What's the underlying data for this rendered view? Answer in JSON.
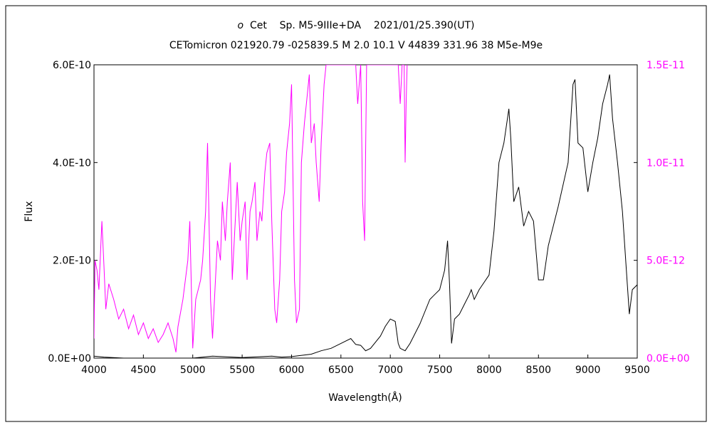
{
  "chart_data": {
    "type": "line",
    "title_star": "o",
    "title_rest": " Cet    Sp. M5-9IIIe+DA    2021/01/25.390(UT)",
    "subtitle": "CETomicron 021920.79 -025839.5 M 2.0 10.1 V 44839 331.96 38 M5e-M9e",
    "xlabel": "Wavelength(Å)",
    "ylabel": "Flux",
    "xlim": [
      4000,
      9500
    ],
    "ylim_left": [
      0,
      6e-10
    ],
    "ylim_right": [
      0,
      1.5e-11
    ],
    "x_ticks": [
      "4000",
      "4500",
      "5000",
      "5500",
      "6000",
      "6500",
      "7000",
      "7500",
      "8000",
      "8500",
      "9000",
      "9500"
    ],
    "y_ticks_left": [
      "0.0E+00",
      "2.0E-10",
      "4.0E-10",
      "6.0E-10"
    ],
    "y_ticks_right": [
      "0.0E+00",
      "5.0E-12",
      "1.0E-11",
      "1.5E-11"
    ],
    "grid": false,
    "series": [
      {
        "axis": "left",
        "color": "#000000",
        "x": [
          4000,
          4100,
          4300,
          4600,
          4800,
          5000,
          5200,
          5500,
          5800,
          5900,
          6000,
          6200,
          6300,
          6400,
          6500,
          6600,
          6650,
          6700,
          6750,
          6800,
          6900,
          6950,
          7000,
          7050,
          7080,
          7100,
          7150,
          7200,
          7300,
          7400,
          7450,
          7500,
          7550,
          7580,
          7600,
          7620,
          7650,
          7700,
          7750,
          7800,
          7820,
          7850,
          7900,
          8000,
          8050,
          8100,
          8150,
          8200,
          8220,
          8250,
          8300,
          8350,
          8400,
          8450,
          8500,
          8550,
          8600,
          8700,
          8800,
          8850,
          8870,
          8900,
          8950,
          9000,
          9050,
          9100,
          9150,
          9200,
          9220,
          9250,
          9300,
          9350,
          9400,
          9420,
          9450,
          9500
        ],
        "values": [
          4e-12,
          2e-12,
          0.0,
          0.0,
          0.0,
          0.0,
          4e-12,
          1e-12,
          4e-12,
          2e-12,
          3e-12,
          8e-12,
          1.5e-11,
          2e-11,
          3e-11,
          4e-11,
          2.8e-11,
          2.6e-11,
          1.5e-11,
          2e-11,
          4.5e-11,
          6.5e-11,
          8e-11,
          7.5e-11,
          3e-11,
          2e-11,
          1.5e-11,
          3e-11,
          7e-11,
          1.2e-10,
          1.3e-10,
          1.4e-10,
          1.8e-10,
          2.4e-10,
          1.5e-10,
          3e-11,
          8e-11,
          9e-11,
          1.1e-10,
          1.3e-10,
          1.4e-10,
          1.2e-10,
          1.4e-10,
          1.7e-10,
          2.6e-10,
          4e-10,
          4.4e-10,
          5.1e-10,
          4.5e-10,
          3.2e-10,
          3.5e-10,
          2.7e-10,
          3e-10,
          2.8e-10,
          1.6e-10,
          1.6e-10,
          2.3e-10,
          3.1e-10,
          4e-10,
          5.6e-10,
          5.7e-10,
          4.4e-10,
          4.3e-10,
          3.4e-10,
          4e-10,
          4.5e-10,
          5.2e-10,
          5.6e-10,
          5.8e-10,
          4.9e-10,
          4e-10,
          3e-10,
          1.5e-10,
          9e-11,
          1.4e-10,
          1.5e-10
        ]
      },
      {
        "axis": "right",
        "color": "#ff00ff",
        "x": [
          4000,
          4010,
          4030,
          4050,
          4080,
          4100,
          4120,
          4150,
          4200,
          4250,
          4300,
          4350,
          4400,
          4450,
          4500,
          4550,
          4600,
          4650,
          4700,
          4750,
          4800,
          4830,
          4850,
          4900,
          4950,
          4970,
          5000,
          5030,
          5080,
          5100,
          5130,
          5150,
          5180,
          5200,
          5230,
          5250,
          5280,
          5300,
          5330,
          5350,
          5380,
          5400,
          5430,
          5450,
          5480,
          5500,
          5530,
          5550,
          5580,
          5600,
          5630,
          5650,
          5680,
          5700,
          5730,
          5750,
          5780,
          5800,
          5830,
          5850,
          5880,
          5900,
          5930,
          5950,
          5980,
          6000,
          6030,
          6050,
          6080,
          6100,
          6130,
          6150,
          6180,
          6200,
          6230,
          6250,
          6280,
          6300,
          6330,
          6350,
          6380,
          6400,
          6410,
          6450,
          6500,
          6550,
          6600,
          6650,
          6670,
          6700,
          6720,
          6740,
          6760,
          6800,
          6900,
          7000,
          7050,
          7080,
          7100,
          7120,
          7140,
          7150,
          7160,
          7170
        ],
        "values": [
          1e-12,
          5e-12,
          4.5e-12,
          3.5e-12,
          7e-12,
          4.8e-12,
          2.5e-12,
          3.8e-12,
          3e-12,
          2e-12,
          2.5e-12,
          1.5e-12,
          2.2e-12,
          1.2e-12,
          1.8e-12,
          1e-12,
          1.5e-12,
          8e-13,
          1.2e-12,
          1.8e-12,
          1e-12,
          3e-13,
          1.6e-12,
          3e-12,
          5e-12,
          7e-12,
          5e-13,
          3e-12,
          4e-12,
          5e-12,
          7.5e-12,
          1.1e-11,
          3e-12,
          1e-12,
          4e-12,
          6e-12,
          5e-12,
          8e-12,
          6e-12,
          8e-12,
          1e-11,
          4e-12,
          7e-12,
          9e-12,
          6e-12,
          7e-12,
          8e-12,
          4e-12,
          7.5e-12,
          8e-12,
          9e-12,
          6e-12,
          7.5e-12,
          7e-12,
          9.5e-12,
          1.05e-11,
          1.1e-11,
          7e-12,
          2.5e-12,
          1.8e-12,
          4e-12,
          7.5e-12,
          8.5e-12,
          1.05e-11,
          1.2e-11,
          1.4e-11,
          4e-12,
          1.8e-12,
          2.5e-12,
          1e-11,
          1.2e-11,
          1.3e-11,
          1.45e-11,
          1.1e-11,
          1.2e-11,
          1e-11,
          8e-12,
          1.1e-11,
          1.4e-11,
          1.5e-11,
          1.5e-11,
          1.5e-11,
          1.5e-11,
          1.5e-11,
          1.5e-11,
          1.5e-11,
          1.5e-11,
          1.5e-11,
          1.3e-11,
          1.5e-11,
          8e-12,
          6e-12,
          1.5e-11,
          1.5e-11,
          1.5e-11,
          1.5e-11,
          1.5e-11,
          1.5e-11,
          1.3e-11,
          1.5e-11,
          1.5e-11,
          1e-11,
          1.3e-11,
          1.5e-11
        ]
      }
    ]
  }
}
